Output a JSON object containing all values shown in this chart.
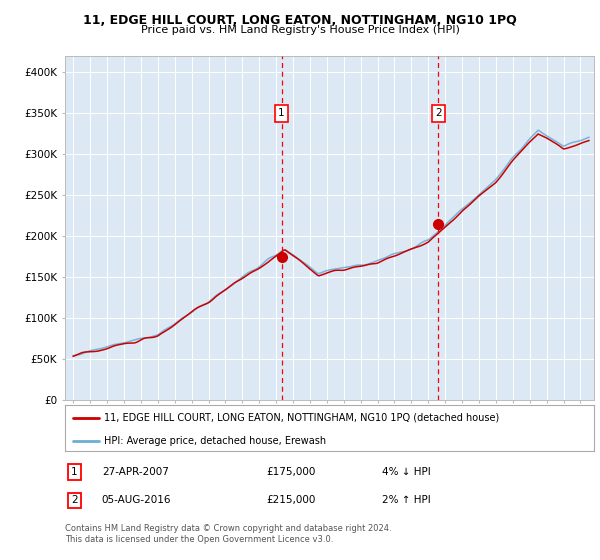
{
  "title": "11, EDGE HILL COURT, LONG EATON, NOTTINGHAM, NG10 1PQ",
  "subtitle": "Price paid vs. HM Land Registry's House Price Index (HPI)",
  "ylim": [
    0,
    420000
  ],
  "xlim_start": 1994.5,
  "xlim_end": 2025.8,
  "sale1_year": 2007.32,
  "sale1_price": 175000,
  "sale2_year": 2016.59,
  "sale2_price": 215000,
  "legend_line1": "11, EDGE HILL COURT, LONG EATON, NOTTINGHAM, NG10 1PQ (detached house)",
  "legend_line2": "HPI: Average price, detached house, Erewash",
  "footer": "Contains HM Land Registry data © Crown copyright and database right 2024.\nThis data is licensed under the Open Government Licence v3.0.",
  "background_color": "#dce9f5",
  "red_color": "#cc0000",
  "blue_color": "#6baed6"
}
